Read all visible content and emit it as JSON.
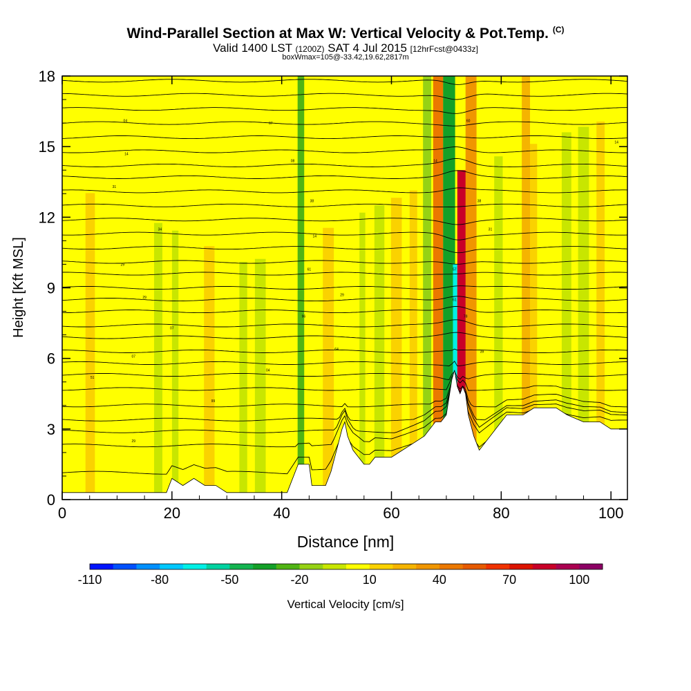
{
  "chart_data": {
    "type": "heatmap",
    "title": "Wind-Parallel Section at Max W: Vertical Velocity & Pot.Temp.",
    "title_mark": "(C)",
    "subtitle_main": "Valid 1400 LST",
    "subtitle_utc": "(1200Z)",
    "subtitle_date": "SAT 4 Jul 2015",
    "subtitle_fcst": "[12hrFcst@0433z]",
    "info": "boxWmax=105@-33.42,19.62,2817m",
    "xlabel": "Distance [nm]",
    "ylabel": "Height [Kft MSL]",
    "xlim": [
      0,
      103
    ],
    "ylim": [
      0,
      18
    ],
    "xticks": [
      0,
      20,
      40,
      60,
      80,
      100
    ],
    "yticks": [
      0,
      3,
      6,
      9,
      12,
      15,
      18
    ],
    "colorbar": {
      "label": "Vertical Velocity [cm/s]",
      "levels": [
        -110,
        -100,
        -90,
        -80,
        -70,
        -60,
        -50,
        -40,
        -30,
        -20,
        -10,
        0,
        10,
        20,
        30,
        40,
        50,
        60,
        70,
        80,
        90,
        100,
        110
      ],
      "tick_labels": [
        -110,
        -80,
        -50,
        -20,
        10,
        40,
        70,
        100
      ],
      "colors": [
        "#0014ff",
        "#0050ff",
        "#0090ff",
        "#00c8ff",
        "#00f0e6",
        "#00d2a0",
        "#14b450",
        "#14a028",
        "#50b414",
        "#96d214",
        "#c8e600",
        "#ffff00",
        "#fad200",
        "#f5b400",
        "#f09600",
        "#eb7800",
        "#e65a00",
        "#f03200",
        "#dc1400",
        "#c80028",
        "#aa0050",
        "#8c0064"
      ]
    },
    "terrain_kft": [
      [
        0,
        0.3
      ],
      [
        5,
        0.3
      ],
      [
        10,
        0.3
      ],
      [
        15,
        0.3
      ],
      [
        19,
        0.3
      ],
      [
        20,
        0.9
      ],
      [
        22,
        0.6
      ],
      [
        24,
        0.9
      ],
      [
        26,
        0.6
      ],
      [
        28,
        0.6
      ],
      [
        30,
        0.3
      ],
      [
        34,
        0.3
      ],
      [
        38,
        0.3
      ],
      [
        41,
        0.3
      ],
      [
        43,
        1.5
      ],
      [
        45,
        1.5
      ],
      [
        45.5,
        0.6
      ],
      [
        48,
        0.6
      ],
      [
        49,
        1.2
      ],
      [
        50,
        2.1
      ],
      [
        51,
        3.0
      ],
      [
        51.5,
        3.3
      ],
      [
        52,
        2.7
      ],
      [
        53,
        2.1
      ],
      [
        54,
        1.8
      ],
      [
        55,
        1.5
      ],
      [
        56,
        1.5
      ],
      [
        57,
        1.8
      ],
      [
        60,
        1.8
      ],
      [
        62,
        2.1
      ],
      [
        64,
        2.4
      ],
      [
        66,
        2.7
      ],
      [
        68,
        3.3
      ],
      [
        69,
        3.3
      ],
      [
        70,
        3.6
      ],
      [
        71,
        5.1
      ],
      [
        71.5,
        5.5
      ],
      [
        72,
        4.8
      ],
      [
        72.5,
        4.5
      ],
      [
        73,
        4.8
      ],
      [
        73.5,
        4.5
      ],
      [
        74,
        3.6
      ],
      [
        75,
        2.7
      ],
      [
        76,
        2.1
      ],
      [
        77,
        2.4
      ],
      [
        78,
        2.7
      ],
      [
        79,
        3.0
      ],
      [
        80,
        3.3
      ],
      [
        81,
        3.6
      ],
      [
        84,
        3.6
      ],
      [
        86,
        3.9
      ],
      [
        90,
        3.9
      ],
      [
        92,
        3.6
      ],
      [
        95,
        3.3
      ],
      [
        98,
        3.3
      ],
      [
        100,
        3.0
      ],
      [
        103,
        3.0
      ]
    ],
    "theta_contours_kft_at_x0": [
      0.9,
      2.3,
      2.9,
      3.4,
      4.0,
      4.7,
      5.3,
      5.8,
      6.3,
      6.9,
      7.4,
      8.0,
      8.5,
      9.0,
      9.6,
      10.1,
      10.7,
      11.3,
      11.9,
      12.5,
      13.1,
      13.7,
      14.2,
      14.8,
      15.4,
      16.0,
      16.6,
      17.2,
      17.8
    ],
    "theta_contour_labels": [
      {
        "x": 5.5,
        "y": 5.2,
        "label": "51"
      },
      {
        "x": 13,
        "y": 2.5,
        "label": "29"
      },
      {
        "x": 15,
        "y": 8.6,
        "label": "29"
      },
      {
        "x": 17.8,
        "y": 11.5,
        "label": "34"
      },
      {
        "x": 11,
        "y": 10.0,
        "label": "29"
      },
      {
        "x": 9.5,
        "y": 13.3,
        "label": "31"
      },
      {
        "x": 11.7,
        "y": 14.7,
        "label": "14"
      },
      {
        "x": 11.5,
        "y": 16.1,
        "label": "04"
      },
      {
        "x": 20,
        "y": 7.3,
        "label": "07"
      },
      {
        "x": 13,
        "y": 6.1,
        "label": "07"
      },
      {
        "x": 27.5,
        "y": 4.2,
        "label": "99"
      },
      {
        "x": 37.5,
        "y": 5.5,
        "label": "04"
      },
      {
        "x": 38,
        "y": 16.0,
        "label": "07"
      },
      {
        "x": 42,
        "y": 14.4,
        "label": "08"
      },
      {
        "x": 45.5,
        "y": 12.7,
        "label": "38"
      },
      {
        "x": 46,
        "y": 11.2,
        "label": "14"
      },
      {
        "x": 45,
        "y": 9.8,
        "label": "61"
      },
      {
        "x": 44,
        "y": 7.8,
        "label": "96"
      },
      {
        "x": 51,
        "y": 8.7,
        "label": "29"
      },
      {
        "x": 50,
        "y": 6.4,
        "label": "64"
      },
      {
        "x": 68,
        "y": 14.4,
        "label": "14"
      },
      {
        "x": 74,
        "y": 16.1,
        "label": "60"
      },
      {
        "x": 76,
        "y": 12.7,
        "label": "38"
      },
      {
        "x": 78,
        "y": 11.5,
        "label": "31"
      },
      {
        "x": 71.5,
        "y": 9.8,
        "label": "57"
      },
      {
        "x": 71.5,
        "y": 8.5,
        "label": "61"
      },
      {
        "x": 73.5,
        "y": 7.8,
        "label": "78"
      },
      {
        "x": 76.5,
        "y": 6.3,
        "label": "39"
      },
      {
        "x": 101,
        "y": 15.2,
        "label": "14"
      }
    ],
    "vertical_velocity_bands": [
      {
        "x_center": 70.5,
        "width": 2.2,
        "w": -35,
        "y_top": 18
      },
      {
        "x_center": 71.6,
        "width": 0.8,
        "w": -70,
        "y_top": 10
      },
      {
        "x_center": 72.8,
        "width": 1.6,
        "w": 80,
        "y_top": 14
      },
      {
        "x_center": 68.5,
        "width": 1.8,
        "w": 40,
        "y_top": 18
      },
      {
        "x_center": 74.5,
        "width": 2.0,
        "w": 30,
        "y_top": 18
      },
      {
        "x_center": 43.5,
        "width": 1.2,
        "w": -25,
        "y_top": 18
      },
      {
        "x_center": 66.5,
        "width": 1.5,
        "w": -15,
        "y_top": 18
      },
      {
        "x_center": 84.5,
        "width": 1.5,
        "w": 25,
        "y_top": 18
      }
    ]
  }
}
